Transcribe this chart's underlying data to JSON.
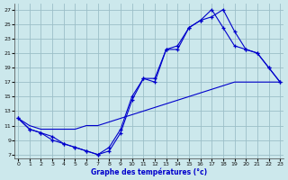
{
  "xlabel": "Graphe des températures (°c)",
  "bg_color": "#cce8ec",
  "grid_color": "#9bbfc8",
  "line_color": "#0000cc",
  "x_ticks": [
    0,
    1,
    2,
    3,
    4,
    5,
    6,
    7,
    8,
    9,
    10,
    11,
    12,
    13,
    14,
    15,
    16,
    17,
    18,
    19,
    20,
    21,
    22,
    23
  ],
  "y_ticks": [
    7,
    9,
    11,
    13,
    15,
    17,
    19,
    21,
    23,
    25,
    27
  ],
  "xlim": [
    -0.3,
    23.3
  ],
  "ylim": [
    6.5,
    27.8
  ],
  "line1_x": [
    0,
    1,
    2,
    3,
    4,
    5,
    6,
    7,
    8,
    9,
    10,
    11,
    12,
    13,
    14,
    15,
    16,
    17,
    18,
    19,
    20,
    21,
    22,
    23
  ],
  "line1_y": [
    12.0,
    10.5,
    10.0,
    9.5,
    8.5,
    8.0,
    7.5,
    7.0,
    8.0,
    10.5,
    15.0,
    17.5,
    17.5,
    21.5,
    22.0,
    24.5,
    25.5,
    26.0,
    27.0,
    24.0,
    21.5,
    21.0,
    19.0,
    17.0
  ],
  "line2_x": [
    0,
    1,
    2,
    3,
    4,
    5,
    6,
    7,
    8,
    9,
    10,
    11,
    12,
    13,
    14,
    15,
    16,
    17,
    18,
    19,
    20,
    21,
    22,
    23
  ],
  "line2_y": [
    12.0,
    10.5,
    10.0,
    9.0,
    8.5,
    8.0,
    7.5,
    7.0,
    7.5,
    10.0,
    14.5,
    17.5,
    17.0,
    21.5,
    21.5,
    24.5,
    25.5,
    27.0,
    24.5,
    22.0,
    21.5,
    21.0,
    19.0,
    17.0
  ],
  "line3_x": [
    0,
    1,
    2,
    3,
    4,
    5,
    6,
    7,
    8,
    9,
    10,
    11,
    12,
    13,
    14,
    15,
    16,
    17,
    18,
    19,
    20,
    21,
    22,
    23
  ],
  "line3_y": [
    12.0,
    11.0,
    10.5,
    10.5,
    10.5,
    10.5,
    11.0,
    11.0,
    11.5,
    12.0,
    12.5,
    13.0,
    13.5,
    14.0,
    14.5,
    15.0,
    15.5,
    16.0,
    16.5,
    17.0,
    17.0,
    17.0,
    17.0,
    17.0
  ]
}
